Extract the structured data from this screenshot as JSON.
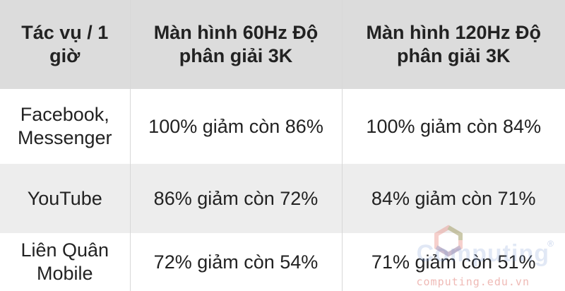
{
  "headers": [
    "Tác vụ / 1 giờ",
    "Màn hình 60Hz Độ phân giải 3K",
    "Màn hình 120Hz Độ phân giải 3K"
  ],
  "rows": [
    [
      "Facebook, Messenger",
      "100% giảm còn 86%",
      "100% giảm còn 84%"
    ],
    [
      "YouTube",
      "86% giảm còn 72%",
      "84% giảm còn 71%"
    ],
    [
      "Liên Quân Mobile",
      "72% giảm còn 54%",
      "71% giảm còn 51%"
    ]
  ],
  "watermark": {
    "brand": "Computing",
    "url": "computing.edu.vn",
    "reg": "®"
  }
}
